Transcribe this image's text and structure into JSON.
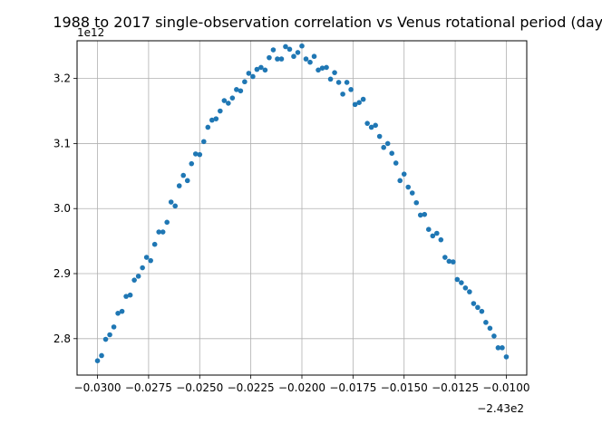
{
  "chart_data": {
    "type": "scatter",
    "title": "1988 to 2017 single-observation correlation vs Venus rotational period (days)",
    "xlabel": "",
    "ylabel": "",
    "x_offset_label": "−2.43e2",
    "y_offset_label": "1e12",
    "grid": true,
    "marker_color": "#1f77b4",
    "xlim": [
      -243.031,
      -243.009
    ],
    "ylim": [
      2744000000000.0,
      3258000000000.0
    ],
    "x_ticks": [
      {
        "value": -243.03,
        "label": "−0.0300"
      },
      {
        "value": -243.0275,
        "label": "−0.0275"
      },
      {
        "value": -243.025,
        "label": "−0.0250"
      },
      {
        "value": -243.0225,
        "label": "−0.0225"
      },
      {
        "value": -243.02,
        "label": "−0.0200"
      },
      {
        "value": -243.0175,
        "label": "−0.0175"
      },
      {
        "value": -243.015,
        "label": "−0.0150"
      },
      {
        "value": -243.0125,
        "label": "−0.0125"
      },
      {
        "value": -243.01,
        "label": "−0.0100"
      }
    ],
    "y_ticks": [
      {
        "value": 2800000000000.0,
        "label": "2.8"
      },
      {
        "value": 2900000000000.0,
        "label": "2.9"
      },
      {
        "value": 3000000000000.0,
        "label": "3.0"
      },
      {
        "value": 3100000000000.0,
        "label": "3.1"
      },
      {
        "value": 3200000000000.0,
        "label": "3.2"
      }
    ],
    "x": [
      -243.03,
      -243.0298,
      -243.0296,
      -243.0294,
      -243.0292,
      -243.029,
      -243.0288,
      -243.0286,
      -243.0284,
      -243.0282,
      -243.028,
      -243.0278,
      -243.0276,
      -243.0274,
      -243.0272,
      -243.027,
      -243.0268,
      -243.0266,
      -243.0264,
      -243.0262,
      -243.026,
      -243.0258,
      -243.0256,
      -243.0254,
      -243.0252,
      -243.025,
      -243.0248,
      -243.0246,
      -243.0244,
      -243.0242,
      -243.024,
      -243.0238,
      -243.0236,
      -243.0234,
      -243.0232,
      -243.023,
      -243.0228,
      -243.0226,
      -243.0224,
      -243.0222,
      -243.022,
      -243.0218,
      -243.0216,
      -243.0214,
      -243.0212,
      -243.021,
      -243.0208,
      -243.0206,
      -243.0204,
      -243.0202,
      -243.02,
      -243.0198,
      -243.0196,
      -243.0194,
      -243.0192,
      -243.019,
      -243.0188,
      -243.0186,
      -243.0184,
      -243.0182,
      -243.018,
      -243.0178,
      -243.0176,
      -243.0174,
      -243.0172,
      -243.017,
      -243.0168,
      -243.0166,
      -243.0164,
      -243.0162,
      -243.016,
      -243.0158,
      -243.0156,
      -243.0154,
      -243.0152,
      -243.015,
      -243.0148,
      -243.0146,
      -243.0144,
      -243.0142,
      -243.014,
      -243.0138,
      -243.0136,
      -243.0134,
      -243.0132,
      -243.013,
      -243.0128,
      -243.0126,
      -243.0124,
      -243.0122,
      -243.012,
      -243.0118,
      -243.0116,
      -243.0114,
      -243.0112,
      -243.011,
      -243.0108,
      -243.0106,
      -243.0104,
      -243.0102,
      -243.01
    ],
    "y": [
      2766000000000.0,
      2774000000000.0,
      2799000000000.0,
      2806000000000.0,
      2818000000000.0,
      2839000000000.0,
      2842000000000.0,
      2865000000000.0,
      2867000000000.0,
      2890000000000.0,
      2896000000000.0,
      2909000000000.0,
      2925000000000.0,
      2920000000000.0,
      2945000000000.0,
      2964000000000.0,
      2964000000000.0,
      2979000000000.0,
      3010000000000.0,
      3004000000000.0,
      3035000000000.0,
      3051000000000.0,
      3043000000000.0,
      3069000000000.0,
      3084000000000.0,
      3083000000000.0,
      3103000000000.0,
      3125000000000.0,
      3136000000000.0,
      3138000000000.0,
      3150000000000.0,
      3166000000000.0,
      3162000000000.0,
      3170000000000.0,
      3183000000000.0,
      3181000000000.0,
      3195000000000.0,
      3208000000000.0,
      3203000000000.0,
      3214000000000.0,
      3217000000000.0,
      3213000000000.0,
      3232000000000.0,
      3244000000000.0,
      3230000000000.0,
      3230000000000.0,
      3249000000000.0,
      3245000000000.0,
      3234000000000.0,
      3240000000000.0,
      3250000000000.0,
      3230000000000.0,
      3225000000000.0,
      3234000000000.0,
      3213000000000.0,
      3216000000000.0,
      3217000000000.0,
      3199000000000.0,
      3209000000000.0,
      3194000000000.0,
      3176000000000.0,
      3194000000000.0,
      3183000000000.0,
      3160000000000.0,
      3163000000000.0,
      3168000000000.0,
      3131000000000.0,
      3125000000000.0,
      3128000000000.0,
      3111000000000.0,
      3094000000000.0,
      3100000000000.0,
      3085000000000.0,
      3070000000000.0,
      3043000000000.0,
      3053000000000.0,
      3033000000000.0,
      3024000000000.0,
      3009000000000.0,
      2990000000000.0,
      2991000000000.0,
      2968000000000.0,
      2958000000000.0,
      2962000000000.0,
      2952000000000.0,
      2925000000000.0,
      2919000000000.0,
      2918000000000.0,
      2891000000000.0,
      2886000000000.0,
      2878000000000.0,
      2872000000000.0,
      2854000000000.0,
      2848000000000.0,
      2842000000000.0,
      2825000000000.0,
      2816000000000.0,
      2804000000000.0,
      2786000000000.0,
      2786000000000.0,
      2772000000000.0
    ]
  }
}
